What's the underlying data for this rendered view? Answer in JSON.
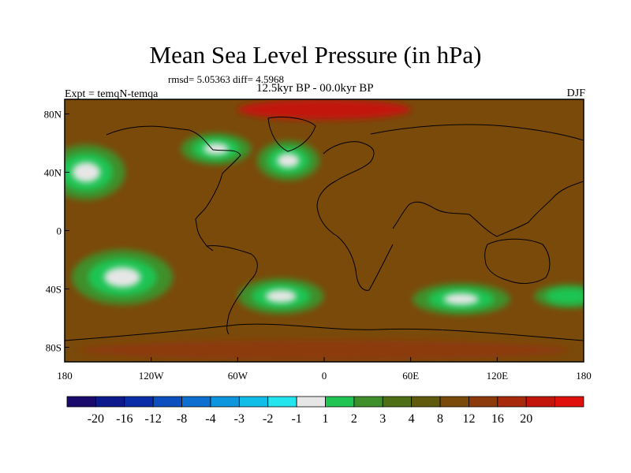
{
  "title": "Mean Sea Level Pressure (in hPa)",
  "stats": "rmsd= 5.05363 diff= 4.5968",
  "experiment": "Expt = temqN-temqa",
  "period": "12.5kyr BP - 00.0kyr BP",
  "season": "DJF",
  "map": {
    "lon_range": [
      -180,
      180
    ],
    "lat_range": [
      -90,
      90
    ],
    "lat_ticks": [
      {
        "value": 80,
        "label": "80N"
      },
      {
        "value": 40,
        "label": "40N"
      },
      {
        "value": 0,
        "label": "0"
      },
      {
        "value": -40,
        "label": "40S"
      },
      {
        "value": -80,
        "label": "80S"
      }
    ],
    "lon_ticks": [
      {
        "value": -180,
        "label": "180"
      },
      {
        "value": -120,
        "label": "120W"
      },
      {
        "value": -60,
        "label": "60W"
      },
      {
        "value": 0,
        "label": "0"
      },
      {
        "value": 60,
        "label": "60E"
      },
      {
        "value": 120,
        "label": "120E"
      },
      {
        "value": 180,
        "label": "180"
      }
    ]
  },
  "colorbar": {
    "colors": [
      "#1a0a6b",
      "#0d1a8c",
      "#0a2ea8",
      "#0c4fbf",
      "#0d6fd0",
      "#0d96dd",
      "#10bde8",
      "#22e5ee",
      "#e6e6e6",
      "#1fc452",
      "#3f8f2a",
      "#4f6f14",
      "#5f5a0c",
      "#7a4a0a",
      "#8c3a0a",
      "#a72a0a",
      "#c2160a",
      "#e0100a"
    ],
    "labels": [
      "-20",
      "-16",
      "-12",
      "-8",
      "-4",
      "-3",
      "-2",
      "-1",
      "1",
      "2",
      "3",
      "4",
      "8",
      "12",
      "16",
      "20"
    ]
  },
  "field": {
    "background": "#7a4a0a",
    "blobs": [
      {
        "lon": -165,
        "lat": 40,
        "rx": 20,
        "ry": 14,
        "levels": [
          "#3f8f2a",
          "#1fc452",
          "#e6e6e6"
        ]
      },
      {
        "lon": -140,
        "lat": -32,
        "rx": 26,
        "ry": 14,
        "levels": [
          "#3f8f2a",
          "#1fc452",
          "#e6e6e6"
        ]
      },
      {
        "lon": -25,
        "lat": 48,
        "rx": 16,
        "ry": 10,
        "levels": [
          "#3f8f2a",
          "#1fc452",
          "#e6e6e6"
        ]
      },
      {
        "lon": -75,
        "lat": 56,
        "rx": 18,
        "ry": 8,
        "levels": [
          "#3f8f2a",
          "#1fc452",
          "#e6e6e6"
        ]
      },
      {
        "lon": -30,
        "lat": -45,
        "rx": 22,
        "ry": 9,
        "levels": [
          "#3f8f2a",
          "#1fc452",
          "#e6e6e6"
        ]
      },
      {
        "lon": 95,
        "lat": -47,
        "rx": 25,
        "ry": 8,
        "levels": [
          "#3f8f2a",
          "#1fc452",
          "#e6e6e6"
        ]
      },
      {
        "lon": 170,
        "lat": -45,
        "rx": 18,
        "ry": 6,
        "levels": [
          "#3f8f2a",
          "#1fc452"
        ]
      }
    ],
    "high_regions": [
      {
        "lon": 0,
        "lat": 83,
        "rx": 60,
        "ry": 7,
        "color": "#c2160a"
      },
      {
        "lon": 0,
        "lat": -82,
        "rx": 170,
        "ry": 7,
        "color": "#8c3a0a"
      }
    ]
  }
}
